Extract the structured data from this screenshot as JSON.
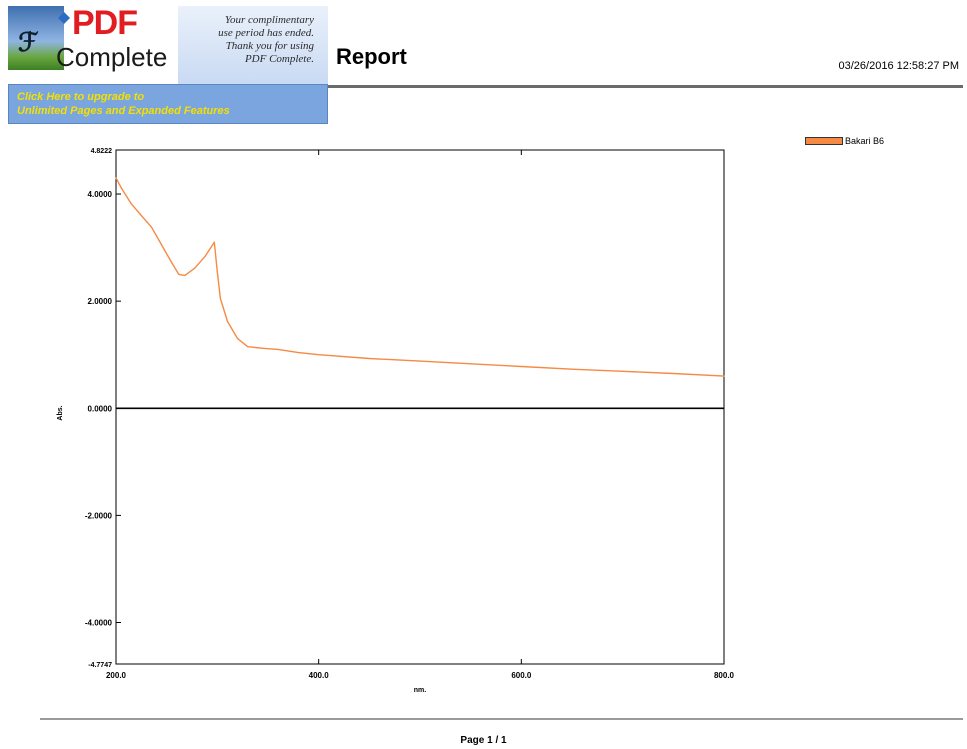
{
  "banner": {
    "brand_pdf": "PDF",
    "brand_complete": "Complete",
    "note_lines": [
      "Your complimentary",
      "use period has ended.",
      "Thank you for using",
      "PDF Complete."
    ],
    "cta_lines": [
      "Click Here to upgrade to",
      "Unlimited Pages and Expanded Features"
    ]
  },
  "report": {
    "title": "Report",
    "timestamp": "03/26/2016  12:58:27 PM",
    "page": "Page 1 / 1"
  },
  "colors": {
    "series": "#f58a45",
    "brand_red": "#e11d22",
    "cta_bg": "#7aa5df",
    "cta_text": "#f4e000"
  },
  "chart_data": {
    "type": "line",
    "xlabel": "nm.",
    "ylabel": "Abs.",
    "xlim": [
      200,
      800
    ],
    "ylim": [
      -4.7747,
      4.8222
    ],
    "x_ticks": [
      200,
      400,
      600,
      800
    ],
    "x_tick_labels": [
      "200.0",
      "400.0",
      "600.0",
      "800.0"
    ],
    "y_ticks": [
      4.8222,
      4.0,
      2.0,
      0.0,
      -2.0,
      -4.0,
      -4.7747
    ],
    "y_tick_labels": [
      "4.8222",
      "4.0000",
      "2.0000",
      "0.0000",
      "-2.0000",
      "-4.0000",
      "-4.7747"
    ],
    "zero_line": true,
    "grid": false,
    "legend_position": "top-right",
    "series": [
      {
        "name": "Bakari B6",
        "x": [
          200,
          205,
          215,
          225,
          235,
          245,
          255,
          262,
          268,
          278,
          288,
          297,
          300,
          303,
          310,
          320,
          330,
          345,
          360,
          380,
          400,
          450,
          500,
          550,
          600,
          650,
          700,
          750,
          800
        ],
        "y": [
          4.3,
          4.12,
          3.82,
          3.6,
          3.38,
          3.05,
          2.72,
          2.5,
          2.48,
          2.62,
          2.84,
          3.1,
          2.55,
          2.05,
          1.62,
          1.3,
          1.15,
          1.12,
          1.1,
          1.04,
          1.0,
          0.93,
          0.88,
          0.83,
          0.78,
          0.73,
          0.69,
          0.65,
          0.6
        ]
      }
    ]
  }
}
